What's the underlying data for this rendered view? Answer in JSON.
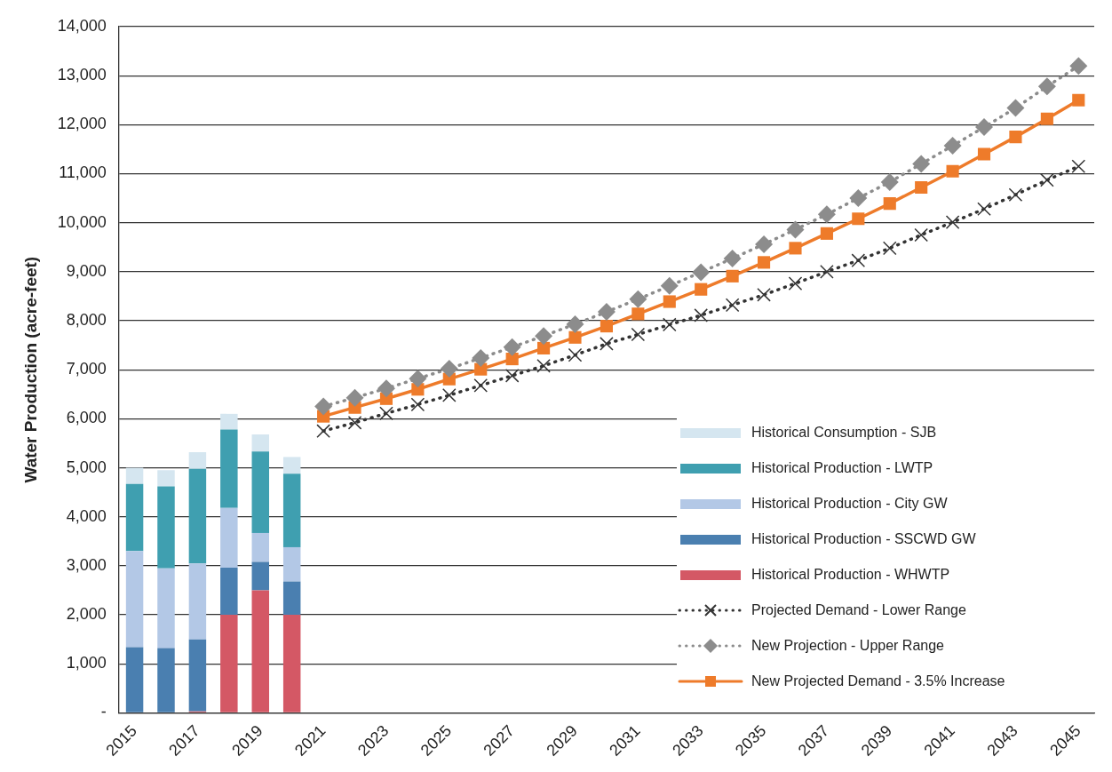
{
  "chart_data": {
    "type": "bar",
    "stacked": true,
    "ylabel": "Water Production (acre-feet)",
    "categories": [
      "2015",
      null,
      "2017",
      null,
      "2019",
      null,
      "2021",
      null,
      "2023",
      null,
      "2025",
      null,
      "2027",
      null,
      "2029",
      null,
      "2031",
      null,
      "2033",
      null,
      "2035",
      null,
      "2037",
      null,
      "2039",
      null,
      "2041",
      null,
      "2043",
      null,
      "2045"
    ],
    "ylim": [
      0,
      14000
    ],
    "yticks": [
      {
        "value": 0,
        "label": "-"
      },
      {
        "value": 1000,
        "label": "1,000"
      },
      {
        "value": 2000,
        "label": "2,000"
      },
      {
        "value": 3000,
        "label": "3,000"
      },
      {
        "value": 4000,
        "label": "4,000"
      },
      {
        "value": 5000,
        "label": "5,000"
      },
      {
        "value": 6000,
        "label": "6,000"
      },
      {
        "value": 7000,
        "label": "7,000"
      },
      {
        "value": 8000,
        "label": "8,000"
      },
      {
        "value": 9000,
        "label": "9,000"
      },
      {
        "value": 10000,
        "label": "10,000"
      },
      {
        "value": 11000,
        "label": "11,000"
      },
      {
        "value": 12000,
        "label": "12,000"
      },
      {
        "value": 13000,
        "label": "13,000"
      },
      {
        "value": 14000,
        "label": "14,000"
      }
    ],
    "grid": "y",
    "legend": "bottom right",
    "series": [
      {
        "name": "Historical Production - WHWTP",
        "type": "bar",
        "color": "#d45865",
        "values": [
          0,
          0,
          30,
          2000,
          2500,
          2000,
          null,
          null,
          null,
          null,
          null,
          null,
          null,
          null,
          null,
          null,
          null,
          null,
          null,
          null,
          null,
          null,
          null,
          null,
          null,
          null,
          null,
          null,
          null,
          null,
          null
        ]
      },
      {
        "name": "Historical Production - SSCWD GW",
        "type": "bar",
        "color": "#4a7fb0",
        "values": [
          1340,
          1320,
          1470,
          960,
          580,
          680,
          null,
          null,
          null,
          null,
          null,
          null,
          null,
          null,
          null,
          null,
          null,
          null,
          null,
          null,
          null,
          null,
          null,
          null,
          null,
          null,
          null,
          null,
          null,
          null,
          null
        ]
      },
      {
        "name": "Historical Production - City GW",
        "type": "bar",
        "color": "#b3c8e6",
        "values": [
          1960,
          1630,
          1550,
          1220,
          590,
          700,
          null,
          null,
          null,
          null,
          null,
          null,
          null,
          null,
          null,
          null,
          null,
          null,
          null,
          null,
          null,
          null,
          null,
          null,
          null,
          null,
          null,
          null,
          null,
          null,
          null
        ]
      },
      {
        "name": "Historical Production - LWTP",
        "type": "bar",
        "color": "#3f9fb0",
        "values": [
          1370,
          1670,
          1930,
          1600,
          1660,
          1500,
          null,
          null,
          null,
          null,
          null,
          null,
          null,
          null,
          null,
          null,
          null,
          null,
          null,
          null,
          null,
          null,
          null,
          null,
          null,
          null,
          null,
          null,
          null,
          null,
          null
        ]
      },
      {
        "name": "Historical Consumption - SJB",
        "type": "bar",
        "color": "#d5e6f0",
        "values": [
          330,
          330,
          340,
          320,
          350,
          340,
          null,
          null,
          null,
          null,
          null,
          null,
          null,
          null,
          null,
          null,
          null,
          null,
          null,
          null,
          null,
          null,
          null,
          null,
          null,
          null,
          null,
          null,
          null,
          null,
          null
        ]
      },
      {
        "name": "Projected Demand - Lower Range",
        "type": "line",
        "marker": "cross",
        "line_style": "dotted",
        "color": "#333333",
        "values": [
          null,
          null,
          null,
          null,
          null,
          null,
          5750,
          5920,
          6110,
          6290,
          6480,
          6680,
          6880,
          7080,
          7300,
          7530,
          7720,
          7920,
          8110,
          8320,
          8530,
          8760,
          9000,
          9230,
          9480,
          9750,
          10010,
          10280,
          10570,
          10870,
          11150
        ]
      },
      {
        "name": "New Projection - Upper Range",
        "type": "line",
        "marker": "diamond",
        "line_style": "dotted",
        "color": "#8c8c8c",
        "values": [
          null,
          null,
          null,
          null,
          null,
          null,
          6250,
          6430,
          6620,
          6820,
          7020,
          7240,
          7460,
          7690,
          7930,
          8180,
          8440,
          8710,
          8990,
          9270,
          9560,
          9860,
          10170,
          10500,
          10830,
          11200,
          11570,
          11950,
          12340,
          12780,
          13200
        ]
      },
      {
        "name": "New Projected Demand - 3.5% Increase",
        "type": "line",
        "marker": "square",
        "line_style": "solid",
        "color": "#ee7b2a",
        "values": [
          null,
          null,
          null,
          null,
          null,
          null,
          6050,
          6230,
          6410,
          6600,
          6810,
          7010,
          7220,
          7440,
          7660,
          7890,
          8140,
          8390,
          8640,
          8910,
          9190,
          9480,
          9780,
          10080,
          10390,
          10720,
          11050,
          11400,
          11750,
          12120,
          12500
        ]
      }
    ]
  }
}
